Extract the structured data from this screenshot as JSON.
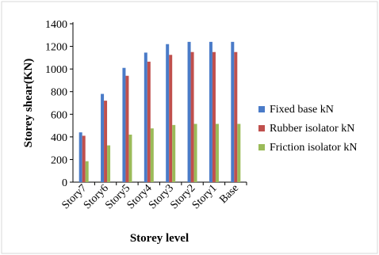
{
  "chart_data": {
    "type": "bar",
    "categories": [
      "Story7",
      "Story6",
      "Story5",
      "Story4",
      "Story3",
      "Story2",
      "Story1",
      "Base"
    ],
    "series": [
      {
        "name": "Fixed base kN",
        "color": "#4a7bc8",
        "values": [
          440,
          780,
          1010,
          1145,
          1220,
          1240,
          1240,
          1240
        ]
      },
      {
        "name": "Rubber isolator kN",
        "color": "#c0504d",
        "values": [
          410,
          720,
          940,
          1065,
          1125,
          1150,
          1150,
          1150
        ]
      },
      {
        "name": "Friction isolator kN",
        "color": "#9bbb59",
        "values": [
          185,
          325,
          420,
          475,
          505,
          515,
          515,
          515
        ]
      }
    ],
    "xlabel": "Storey level",
    "ylabel": "Storey shear(KN)",
    "yticks": [
      0,
      200,
      400,
      600,
      800,
      1000,
      1200,
      1400
    ],
    "ylim": [
      0,
      1400
    ],
    "grid": false,
    "legend_position": "right"
  }
}
